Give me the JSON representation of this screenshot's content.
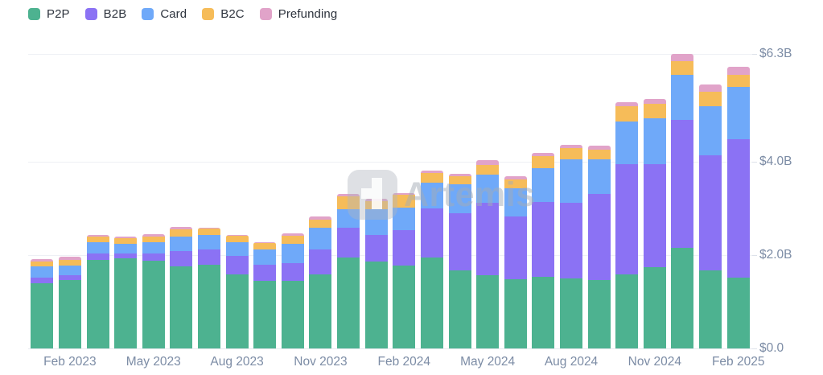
{
  "legend": {
    "items": [
      {
        "label": "P2P",
        "color": "#4db290"
      },
      {
        "label": "B2B",
        "color": "#8b72f4"
      },
      {
        "label": "Card",
        "color": "#6fa9f9"
      },
      {
        "label": "B2C",
        "color": "#f6bc59"
      },
      {
        "label": "Prefunding",
        "color": "#e1a3c9"
      }
    ]
  },
  "watermark": {
    "text": "Artemis"
  },
  "chart_data": {
    "type": "bar",
    "stacked": true,
    "title": "",
    "xlabel": "",
    "ylabel": "",
    "unit": "USD billions",
    "ylim": [
      0,
      6.3
    ],
    "grid": true,
    "legend_position": "top-left",
    "y_axis_side": "right",
    "x": [
      "Jan 2023",
      "Feb 2023",
      "Mar 2023",
      "Apr 2023",
      "May 2023",
      "Jun 2023",
      "Jul 2023",
      "Aug 2023",
      "Sep 2023",
      "Oct 2023",
      "Nov 2023",
      "Dec 2023",
      "Jan 2024",
      "Feb 2024",
      "Mar 2024",
      "Apr 2024",
      "May 2024",
      "Jun 2024",
      "Jul 2024",
      "Aug 2024",
      "Sep 2024",
      "Oct 2024",
      "Nov 2024",
      "Dec 2024",
      "Jan 2025",
      "Feb 2025"
    ],
    "x_tick_labels": [
      {
        "index": 1,
        "label": "Feb 2023"
      },
      {
        "index": 4,
        "label": "May 2023"
      },
      {
        "index": 7,
        "label": "Aug 2023"
      },
      {
        "index": 10,
        "label": "Nov 2023"
      },
      {
        "index": 13,
        "label": "Feb 2024"
      },
      {
        "index": 16,
        "label": "May 2024"
      },
      {
        "index": 19,
        "label": "Aug 2024"
      },
      {
        "index": 22,
        "label": "Nov 2024"
      },
      {
        "index": 25,
        "label": "Feb 2025"
      }
    ],
    "y_ticks": [
      {
        "value": 0,
        "label": "$0.0"
      },
      {
        "value": 2,
        "label": "$2.0B"
      },
      {
        "value": 4,
        "label": "$4.0B"
      },
      {
        "value": 6.3,
        "label": "$6.3B"
      }
    ],
    "series": [
      {
        "name": "P2P",
        "color": "#4db290",
        "values": [
          1.39,
          1.46,
          1.89,
          1.93,
          1.87,
          1.76,
          1.79,
          1.59,
          1.45,
          1.44,
          1.59,
          1.94,
          1.86,
          1.78,
          1.94,
          1.67,
          1.56,
          1.48,
          1.53,
          1.49,
          1.47,
          1.59,
          1.74,
          2.16,
          1.67,
          1.51
        ]
      },
      {
        "name": "B2B",
        "color": "#8b72f4",
        "values": [
          0.13,
          0.1,
          0.14,
          0.1,
          0.16,
          0.32,
          0.32,
          0.39,
          0.34,
          0.38,
          0.52,
          0.64,
          0.56,
          0.75,
          1.05,
          1.22,
          1.55,
          1.34,
          1.6,
          1.62,
          1.83,
          2.36,
          2.21,
          2.73,
          2.47,
          2.97
        ]
      },
      {
        "name": "Card",
        "color": "#6fa9f9",
        "values": [
          0.24,
          0.21,
          0.25,
          0.21,
          0.25,
          0.31,
          0.31,
          0.3,
          0.32,
          0.42,
          0.48,
          0.4,
          0.55,
          0.49,
          0.56,
          0.62,
          0.61,
          0.61,
          0.73,
          0.94,
          0.75,
          0.91,
          0.97,
          0.96,
          1.04,
          1.11
        ]
      },
      {
        "name": "B2C",
        "color": "#f6bc59",
        "values": [
          0.1,
          0.13,
          0.12,
          0.12,
          0.12,
          0.15,
          0.14,
          0.13,
          0.14,
          0.17,
          0.16,
          0.27,
          0.18,
          0.26,
          0.21,
          0.17,
          0.21,
          0.18,
          0.25,
          0.23,
          0.21,
          0.32,
          0.32,
          0.3,
          0.31,
          0.27
        ]
      },
      {
        "name": "Prefunding",
        "color": "#e1a3c9",
        "values": [
          0.05,
          0.06,
          0.02,
          0.03,
          0.05,
          0.06,
          0.02,
          0.02,
          0.02,
          0.06,
          0.07,
          0.05,
          0.05,
          0.04,
          0.04,
          0.05,
          0.1,
          0.07,
          0.07,
          0.07,
          0.07,
          0.08,
          0.1,
          0.15,
          0.15,
          0.17
        ]
      }
    ]
  }
}
